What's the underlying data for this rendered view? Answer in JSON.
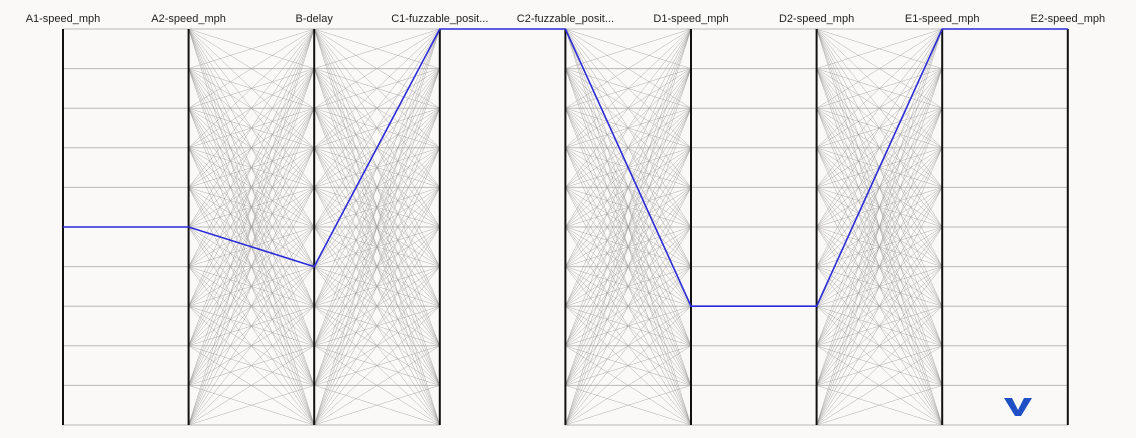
{
  "chart_data": {
    "type": "parallel",
    "categories": [
      "A1-speed_mph",
      "A2-speed_mph",
      "B-delay",
      "C1-fuzzable_posit...",
      "C2-fuzzable_posit...",
      "D1-speed_mph",
      "D2-speed_mph",
      "E1-speed_mph",
      "E2-speed_mph"
    ],
    "series": [
      {
        "color": "#2b2bd9",
        "values": [
          5,
          5,
          4,
          10,
          10,
          3,
          3,
          10,
          10
        ]
      }
    ],
    "ylim": [
      0,
      10
    ],
    "yticks": [
      0,
      1,
      2,
      3,
      4,
      5,
      6,
      7,
      8,
      9,
      10
    ],
    "grid": true,
    "watermark": "映维网"
  }
}
